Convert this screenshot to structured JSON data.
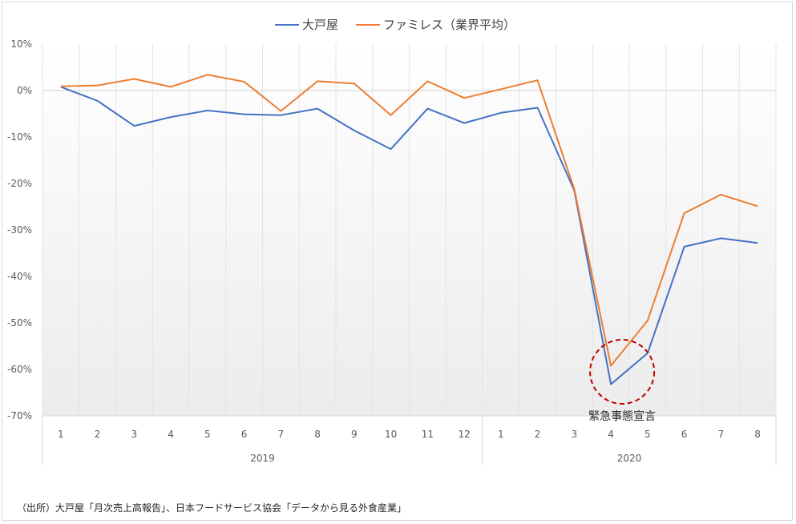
{
  "chart_data": {
    "type": "line",
    "x": [
      "1",
      "2",
      "3",
      "4",
      "5",
      "6",
      "7",
      "8",
      "9",
      "10",
      "11",
      "12",
      "1",
      "2",
      "3",
      "4",
      "5",
      "6",
      "7",
      "8"
    ],
    "groups": [
      {
        "label": "2019",
        "count": 12
      },
      {
        "label": "2020",
        "count": 8
      }
    ],
    "series": [
      {
        "name": "大戸屋",
        "color": "#4472c4",
        "values": [
          0.8,
          -2.2,
          -7.6,
          -5.7,
          -4.3,
          -5.1,
          -5.3,
          -3.9,
          -8.6,
          -12.6,
          -3.9,
          -7.0,
          -4.8,
          -3.7,
          -21.5,
          -63.2,
          -56.5,
          -33.6,
          -31.8,
          -32.8
        ]
      },
      {
        "name": "ファミレス（業界平均）",
        "color": "#ed7d31",
        "values": [
          0.9,
          1.1,
          2.5,
          0.8,
          3.4,
          1.9,
          -4.4,
          2.0,
          1.5,
          -5.3,
          2.0,
          -1.6,
          0.3,
          2.2,
          -21.2,
          -59.2,
          -49.5,
          -26.4,
          -22.4,
          -24.9
        ]
      }
    ],
    "ylim": [
      -70,
      10
    ],
    "yticks": [
      "10%",
      "0%",
      "-10%",
      "-20%",
      "-30%",
      "-40%",
      "-50%",
      "-60%",
      "-70%"
    ],
    "ytick_values": [
      10,
      0,
      -10,
      -20,
      -30,
      -40,
      -50,
      -60,
      -70
    ],
    "legend_position": "top-center",
    "grid": "vertical",
    "annotation": {
      "text": "緊急事態宣言",
      "index": 15,
      "circle_color": "#c00000"
    }
  },
  "source_note": "（出所）大戸屋「月次売上高報告」、日本フードサービス協会「データから見る外食産業」"
}
